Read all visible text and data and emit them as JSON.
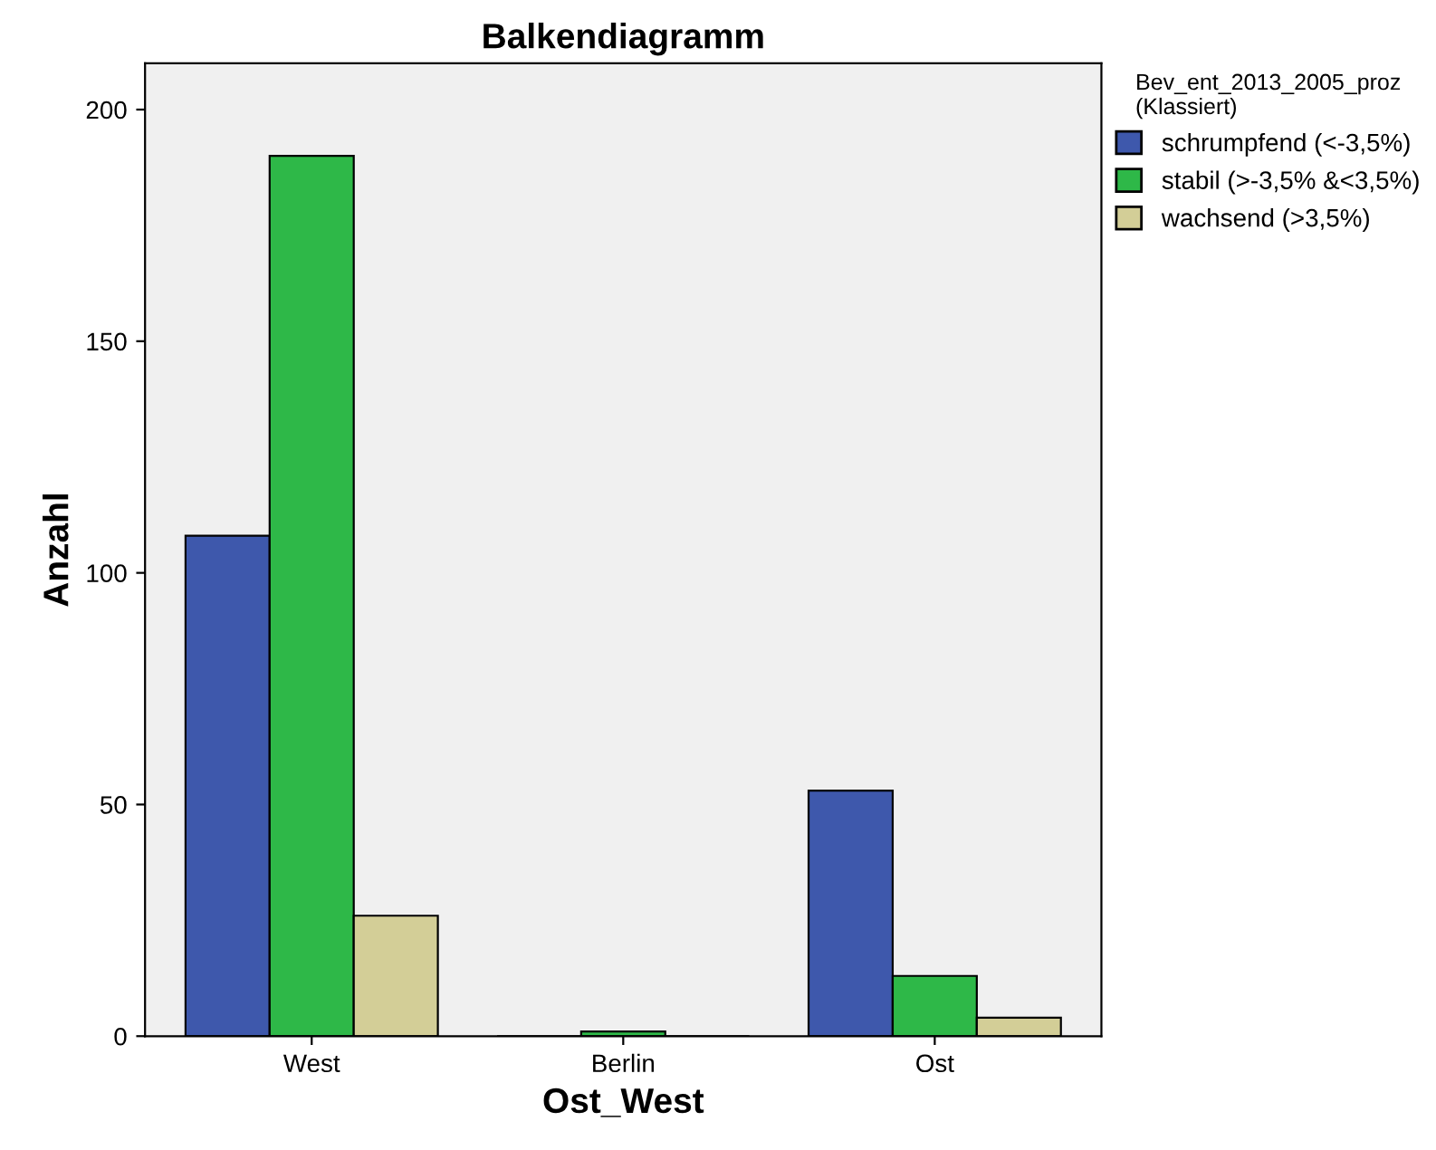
{
  "chart_data": {
    "type": "bar",
    "title": "Balkendiagramm",
    "xlabel": "Ost_West",
    "ylabel": "Anzahl",
    "legend_title": "Bev_ent_2013_2005_proz\n(Klassiert)",
    "categories": [
      "West",
      "Berlin",
      "Ost"
    ],
    "series": [
      {
        "name": "schrumpfend (<-3,5%)",
        "color": "#3e58ac",
        "values": [
          108,
          0,
          53
        ]
      },
      {
        "name": "stabil (>-3,5% &<3,5%)",
        "color": "#2eb848",
        "values": [
          190,
          1,
          13
        ]
      },
      {
        "name": "wachsend (>3,5%)",
        "color": "#d3ce97",
        "values": [
          26,
          0,
          4
        ]
      }
    ],
    "ylim": [
      0,
      210
    ],
    "yticks": [
      0,
      50,
      100,
      150,
      200
    ],
    "grid": false,
    "legend": "top right"
  }
}
